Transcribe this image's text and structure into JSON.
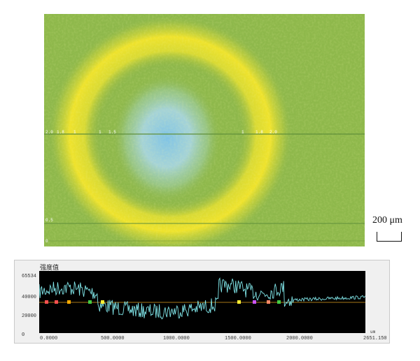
{
  "scale_bar": {
    "label": "200 μm"
  },
  "profile": {
    "title": "强度值",
    "y_ticks": [
      "65534",
      "40000",
      "20000",
      "0"
    ],
    "x_ticks": [
      "0.0000",
      "500.0000",
      "1000.0000",
      "1500.0000",
      "2000.0000",
      "2651.150"
    ],
    "x_unit": "um",
    "colors": {
      "background": "#000000",
      "trace": "#7fe3e6",
      "baseline": "#e0a020"
    }
  },
  "overlay_labels": {
    "left_row": [
      "2.0",
      "1.8",
      "1"
    ],
    "center": [
      "1",
      "1.5"
    ],
    "right_row": [
      "1",
      "1.8",
      "2.0"
    ],
    "bottom": [
      "0.5",
      "0"
    ]
  },
  "colors": {
    "field_green": "#8ab44a",
    "ring_yellow": "#f2e22c",
    "core_blue": "#a8d4e8"
  }
}
